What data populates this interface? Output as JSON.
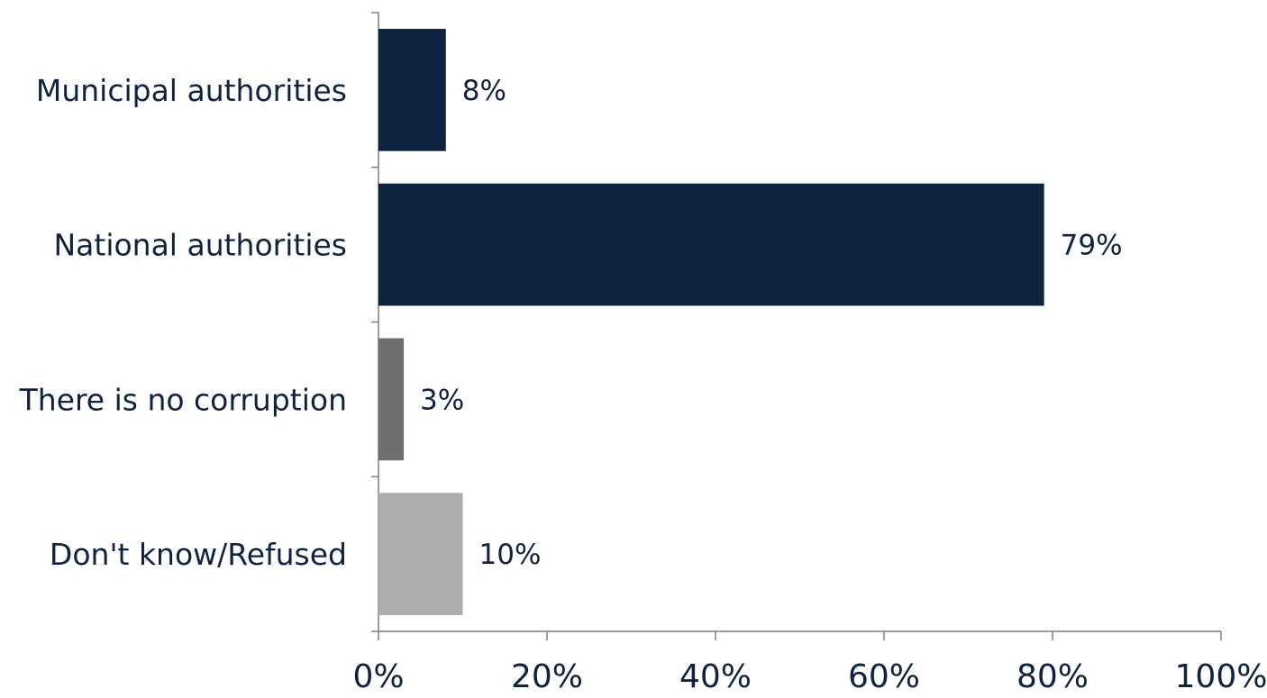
{
  "chart_data": {
    "type": "bar",
    "orientation": "horizontal",
    "categories": [
      "Municipal authorities",
      "National authorities",
      "There is no corruption",
      "Don't know/Refused"
    ],
    "values": [
      8,
      79,
      3,
      10
    ],
    "data_labels": [
      "8%",
      "79%",
      "3%",
      "10%"
    ],
    "bar_colors": [
      "#0e2340",
      "#0e2340",
      "#6f6f6f",
      "#adadad"
    ],
    "xlim": [
      0,
      100
    ],
    "x_ticks": [
      "0%",
      "20%",
      "40%",
      "60%",
      "80%",
      "100%"
    ],
    "title": "",
    "xlabel": "",
    "ylabel": "",
    "grid": false,
    "legend": "none"
  }
}
